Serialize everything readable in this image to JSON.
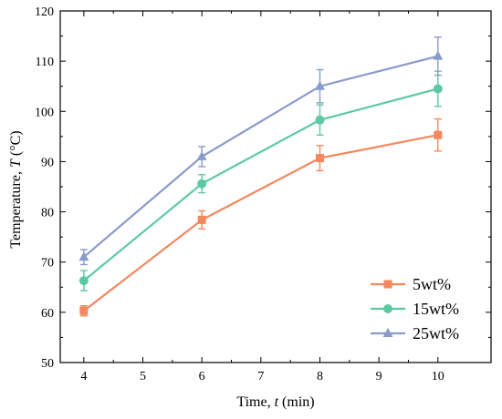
{
  "chart_data": {
    "type": "line",
    "title": "",
    "xlabel": "Time, t (min)",
    "xlabel_parts": [
      "Time, ",
      "t",
      " (min)"
    ],
    "ylabel": "Temperature, T (°C)",
    "ylabel_parts": [
      "Temperature, ",
      "T",
      " (°C)"
    ],
    "xlim": [
      3.6,
      10.9
    ],
    "ylim": [
      50,
      120
    ],
    "xticks": [
      4,
      5,
      6,
      7,
      8,
      9,
      10
    ],
    "yticks": [
      50,
      60,
      70,
      80,
      90,
      100,
      110,
      120
    ],
    "grid": false,
    "legend_position": "bottom-right",
    "x": [
      4,
      6,
      8,
      10
    ],
    "series": [
      {
        "name": "5wt%",
        "color": "#F4875E",
        "marker": "square",
        "values": [
          60.3,
          78.4,
          90.7,
          95.3
        ],
        "errors": [
          1.0,
          1.8,
          2.5,
          3.2
        ]
      },
      {
        "name": "15wt%",
        "color": "#5DC9A3",
        "marker": "circle",
        "values": [
          66.3,
          85.6,
          98.3,
          104.5
        ],
        "errors": [
          2.0,
          1.8,
          3.0,
          3.5
        ]
      },
      {
        "name": "25wt%",
        "color": "#8A9BCB",
        "marker": "triangle",
        "values": [
          71.0,
          91.0,
          105.0,
          111.0
        ],
        "errors": [
          1.5,
          2.0,
          3.3,
          3.8
        ]
      }
    ]
  }
}
